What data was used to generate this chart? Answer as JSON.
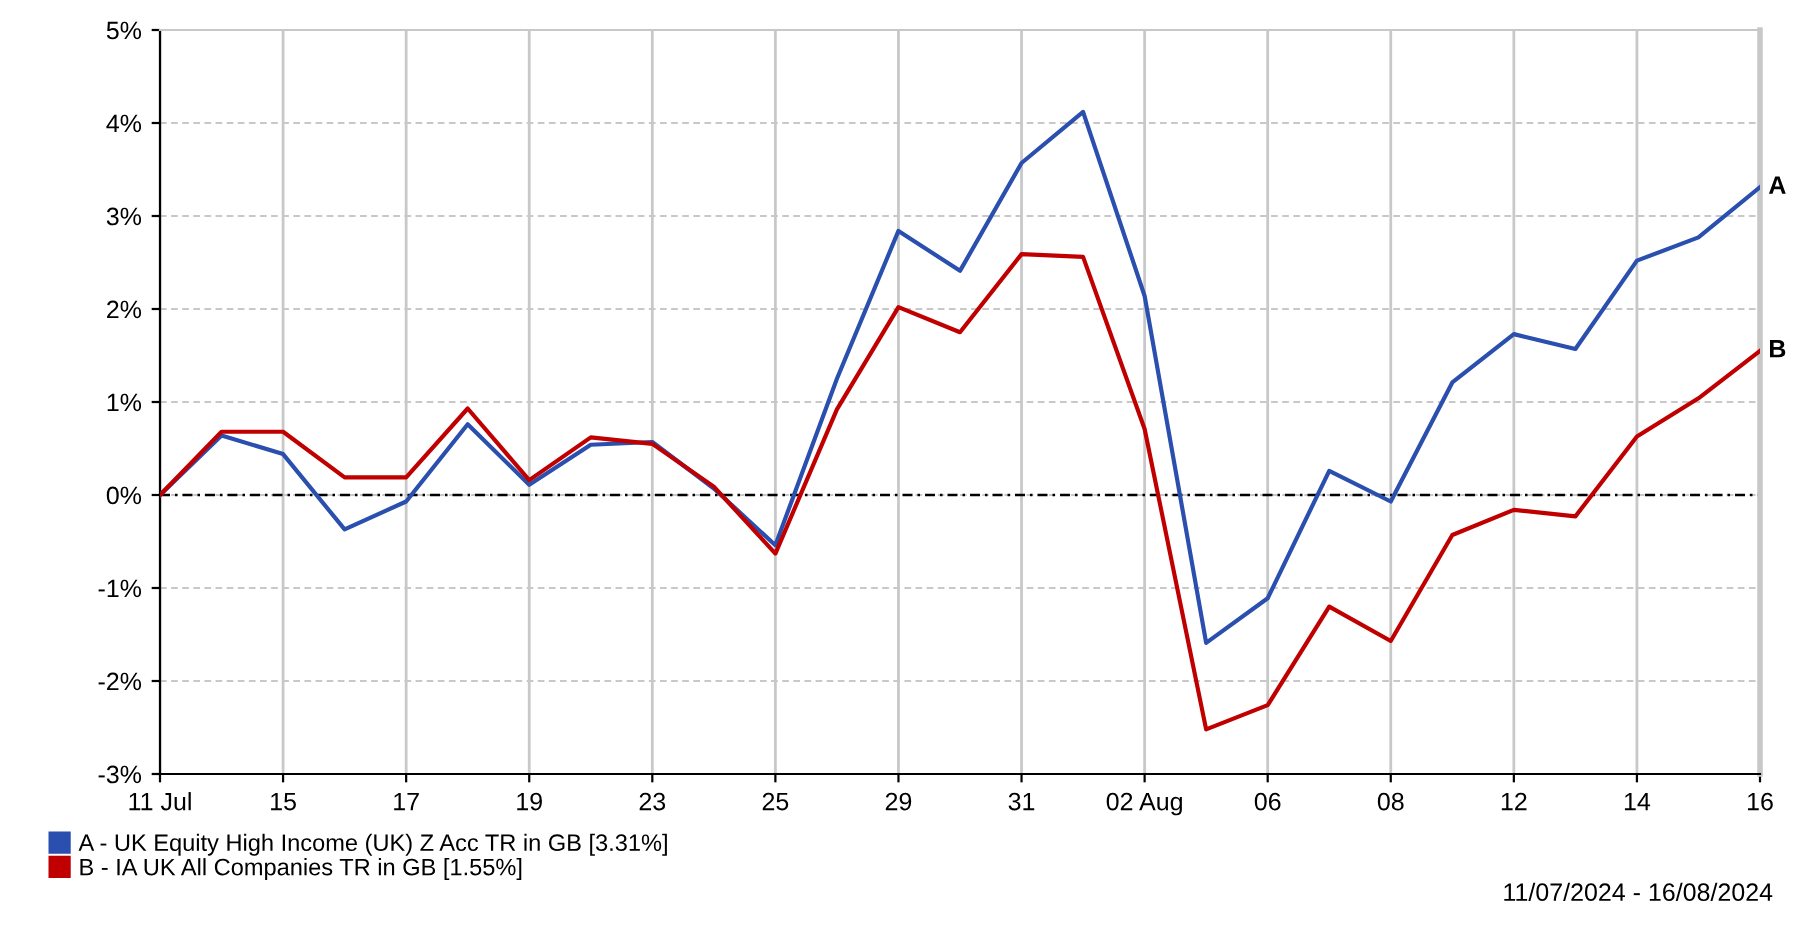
{
  "chart_data": {
    "type": "line",
    "categories": [
      "11 Jul",
      null,
      "15",
      null,
      "17",
      null,
      "19",
      null,
      "23",
      null,
      "25",
      null,
      "29",
      null,
      "31",
      null,
      "02 Aug",
      null,
      "06",
      null,
      "08",
      null,
      "12",
      null,
      "14",
      null,
      "16"
    ],
    "series": [
      {
        "name": "A - UK Equity High Income (UK) Z Acc TR in GB [3.31%]",
        "color": "#2a4fae",
        "values": [
          0,
          0.64,
          0.44,
          -0.37,
          -0.07,
          0.76,
          0.11,
          0.54,
          0.57,
          0.07,
          -0.54,
          1.25,
          2.84,
          2.41,
          3.57,
          4.12,
          2.14,
          -1.59,
          -1.11,
          0.26,
          -0.07,
          1.21,
          1.73,
          1.57,
          2.52,
          2.77,
          3.31
        ]
      },
      {
        "name": "B - IA UK All Companies TR in GB [1.55%]",
        "color": "#c00000",
        "values": [
          0,
          0.68,
          0.68,
          0.19,
          0.19,
          0.93,
          0.16,
          0.62,
          0.55,
          0.09,
          -0.63,
          0.92,
          2.02,
          1.75,
          2.59,
          2.56,
          0.71,
          -2.52,
          -2.26,
          -1.2,
          -1.57,
          -0.43,
          -0.16,
          -0.23,
          0.63,
          1.04,
          1.55
        ]
      }
    ],
    "ylim": [
      -3,
      5
    ],
    "yticks": [
      {
        "value": -3,
        "label": "-3%"
      },
      {
        "value": -2,
        "label": "-2%"
      },
      {
        "value": -1,
        "label": "-1%"
      },
      {
        "value": 0,
        "label": "0%"
      },
      {
        "value": 1,
        "label": "1%"
      },
      {
        "value": 2,
        "label": "2%"
      },
      {
        "value": 3,
        "label": "3%"
      },
      {
        "value": 4,
        "label": "4%"
      },
      {
        "value": 5,
        "label": "5%"
      }
    ],
    "ref_lines": [
      {
        "axis": "y",
        "value": 0,
        "color": "#000000",
        "line_style": "dotted"
      }
    ],
    "annotations": [
      {
        "text": "A",
        "x": "16",
        "y": 3.31
      },
      {
        "text": "B",
        "x": "16",
        "y": 1.55
      },
      "11/07/2024 - 16/08/2024"
    ],
    "grid": true,
    "legend": "bottom left",
    "marker": "none",
    "line_style": "solid"
  }
}
